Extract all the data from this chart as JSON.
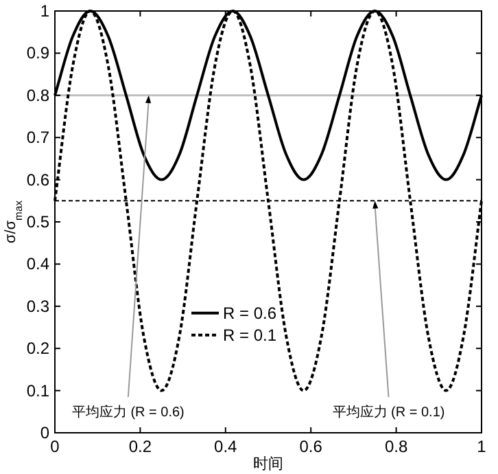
{
  "chart_data": {
    "type": "line",
    "xlabel": "时间",
    "ylabel": "σ/σ$_{max}$",
    "x": [
      0,
      0.042,
      0.083,
      0.125,
      0.167,
      0.208,
      0.25,
      0.292,
      0.333,
      0.375,
      0.417,
      0.458,
      0.5,
      0.542,
      0.583,
      0.625,
      0.667,
      0.708,
      0.75,
      0.792,
      0.833,
      0.875,
      0.917,
      0.958,
      1
    ],
    "series": [
      {
        "name": "R = 0.6",
        "color": "#000000",
        "line_style": "solid",
        "values": [
          0.8,
          0.94,
          1,
          0.94,
          0.8,
          0.66,
          0.6,
          0.66,
          0.8,
          0.94,
          1,
          0.94,
          0.8,
          0.66,
          0.6,
          0.66,
          0.8,
          0.94,
          1,
          0.94,
          0.8,
          0.66,
          0.6,
          0.66,
          0.8
        ]
      },
      {
        "name": "R = 0.1",
        "color": "#000000",
        "line_style": "dashed",
        "values": [
          0.55,
          0.87,
          1,
          0.87,
          0.55,
          0.23,
          0.1,
          0.23,
          0.55,
          0.87,
          1,
          0.87,
          0.55,
          0.23,
          0.1,
          0.23,
          0.55,
          0.87,
          1,
          0.87,
          0.55,
          0.23,
          0.1,
          0.23,
          0.55
        ]
      }
    ],
    "xlim": [
      0,
      1
    ],
    "ylim": [
      0,
      1
    ],
    "xticks": [
      0,
      0.2,
      0.4,
      0.6,
      0.8,
      1
    ],
    "yticks": [
      0,
      0.1,
      0.2,
      0.3,
      0.4,
      0.5,
      0.6,
      0.7,
      0.8,
      0.9,
      1
    ],
    "ref_lines": [
      {
        "axis": "y",
        "value": 0.8,
        "color": "#c0c0c0",
        "line_style": "solid"
      },
      {
        "axis": "y",
        "value": 0.55,
        "color": "#000000",
        "line_style": "dashed"
      }
    ],
    "annotations": [
      {
        "text": "平均应力 (R = 0.6)",
        "x": 0.22,
        "y": 0.8
      },
      {
        "text": "平均应力 (R = 0.1)",
        "x": 0.75,
        "y": 0.55
      }
    ],
    "legend": "bottom",
    "grid": false,
    "marker": "none"
  }
}
